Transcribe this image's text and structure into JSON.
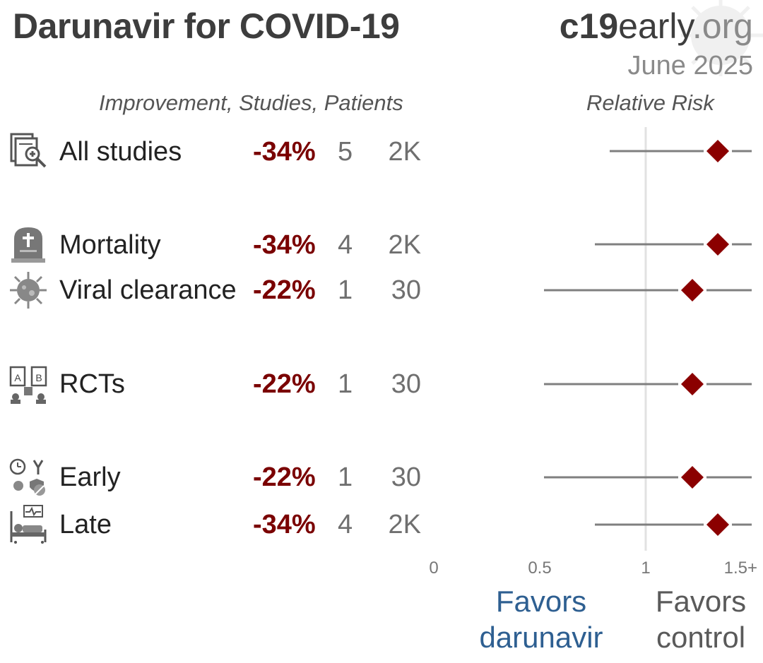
{
  "title": "Darunavir for COVID-19",
  "brand": {
    "bold": "c19",
    "mid": "early",
    "tail": ".org"
  },
  "date": "June 2025",
  "headers": {
    "left": "Improvement, Studies, Patients",
    "right": "Relative Risk"
  },
  "colors": {
    "point": "#8b0000",
    "ci": "#7f7f7f",
    "ref_line": "#e2e2e2",
    "favors_treatment": "#2e5f91",
    "favors_control": "#5a5a5a",
    "percent": "#7a0000"
  },
  "rows": [
    {
      "label": "All studies",
      "icon": "magnifier-document-icon",
      "improvement": "-34%",
      "studies": "5",
      "patients": "2K"
    },
    {
      "label": "Mortality",
      "icon": "tombstone-icon",
      "improvement": "-34%",
      "studies": "4",
      "patients": "2K"
    },
    {
      "label": "Viral clearance",
      "icon": "virus-icon",
      "improvement": "-22%",
      "studies": "1",
      "patients": "30"
    },
    {
      "label": "RCTs",
      "icon": "ab-trial-icon",
      "improvement": "-22%",
      "studies": "1",
      "patients": "30"
    },
    {
      "label": "Early",
      "icon": "early-treatment-icon",
      "improvement": "-22%",
      "studies": "1",
      "patients": "30"
    },
    {
      "label": "Late",
      "icon": "hospital-bed-icon",
      "improvement": "-34%",
      "studies": "4",
      "patients": "2K"
    }
  ],
  "favors": {
    "treatment": [
      "Favors",
      "darunavir"
    ],
    "control": [
      "Favors",
      "control"
    ]
  },
  "chart_data": {
    "type": "scatter",
    "title": "Relative Risk",
    "xlabel": "",
    "ylabel": "",
    "x_tick_labels": [
      "0",
      "0.5",
      "1",
      "1.5+"
    ],
    "xlim": [
      0,
      1.5
    ],
    "reference_line": 1,
    "grid": false,
    "series": [
      {
        "category": "All studies",
        "rr": 1.34,
        "ci_low": 0.83,
        "ci_high": 1.5
      },
      {
        "category": "Mortality",
        "rr": 1.34,
        "ci_low": 0.76,
        "ci_high": 1.5
      },
      {
        "category": "Viral clearance",
        "rr": 1.22,
        "ci_low": 0.52,
        "ci_high": 1.5
      },
      {
        "category": "RCTs",
        "rr": 1.22,
        "ci_low": 0.52,
        "ci_high": 1.5
      },
      {
        "category": "Early",
        "rr": 1.22,
        "ci_low": 0.52,
        "ci_high": 1.5
      },
      {
        "category": "Late",
        "rr": 1.34,
        "ci_low": 0.76,
        "ci_high": 1.5
      }
    ]
  }
}
